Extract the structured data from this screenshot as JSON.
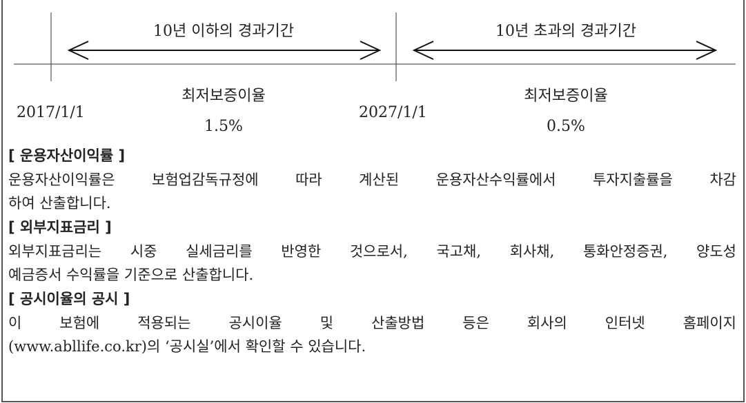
{
  "diagram": {
    "periods": [
      {
        "label": "10년 이하의 경과기간"
      },
      {
        "label": "10년 초과의 경과기간"
      }
    ],
    "dates": [
      "2017/1/1",
      "2027/1/1"
    ],
    "rates": [
      {
        "label": "최저보증이율",
        "value": "1.5%"
      },
      {
        "label": "최저보증이율",
        "value": "0.5%"
      }
    ]
  },
  "sections": [
    {
      "heading": "[ 운용자산이익률 ]",
      "lines": [
        "운용자산이익률은 보험업감독규정에 따라 계산된 운용자산수익률에서 투자지출률을 차감",
        "하여 산출합니다."
      ]
    },
    {
      "heading": "[ 외부지표금리 ]",
      "lines": [
        "외부지표금리는 시중 실세금리를 반영한 것으로서, 국고채, 회사채, 통화안정증권, 양도성",
        "예금증서 수익률을 기준으로 산출합니다."
      ]
    },
    {
      "heading": "[ 공시이율의 공시 ]",
      "lines": [
        "이 보험에 적용되는 공시이율 및 산출방법 등은 회사의 인터넷 홈페이지",
        "(www.abllife.co.kr)의 ‘공시실’에서 확인할 수 있습니다."
      ]
    }
  ]
}
